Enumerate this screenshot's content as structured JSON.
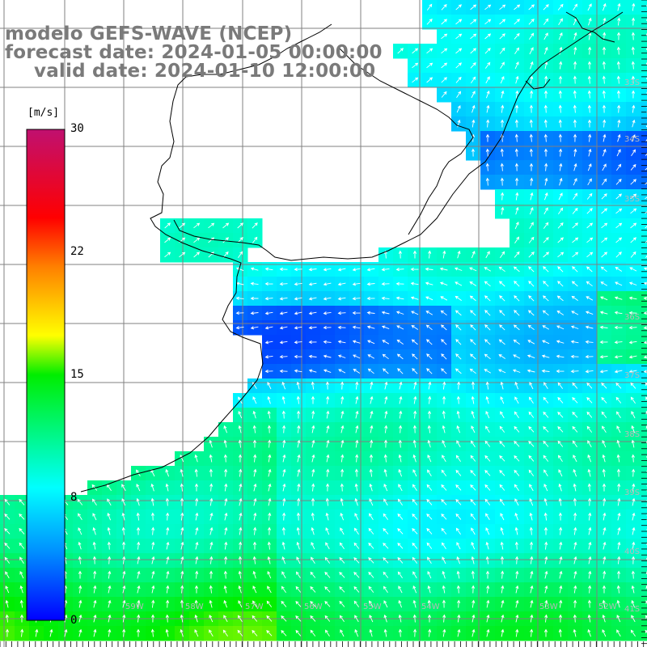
{
  "title": {
    "line1": "modelo GEFS-WAVE (NCEP)",
    "line2": "forecast date: 2024-01-05 00:00:00",
    "line3": "valid date: 2024-01-10 12:00:00"
  },
  "colorbar": {
    "unit": "[m/s]",
    "ticks": [
      "30",
      "22",
      "15",
      "8",
      "0"
    ],
    "tick_values": [
      30,
      22,
      15,
      8,
      0
    ],
    "range": [
      0,
      30
    ],
    "colors": [
      "#0000ff",
      "#00a0ff",
      "#00ffff",
      "#00ff00",
      "#ffff00",
      "#ff8000",
      "#ff0000",
      "#c01070"
    ]
  },
  "map": {
    "lon_range": [
      -63,
      -41
    ],
    "lat_range": [
      -42,
      -22
    ],
    "latitude_labels": [
      "33S",
      "34S",
      "35S",
      "36S",
      "37S",
      "38S",
      "39S",
      "40S",
      "41S"
    ],
    "longitude_labels": [
      "59W",
      "58W",
      "57W",
      "56W",
      "55W",
      "54W",
      "53W",
      "52W"
    ],
    "land_color": "#ffffff",
    "grid_color": "#808080",
    "vector_color": "#ffffff"
  }
}
